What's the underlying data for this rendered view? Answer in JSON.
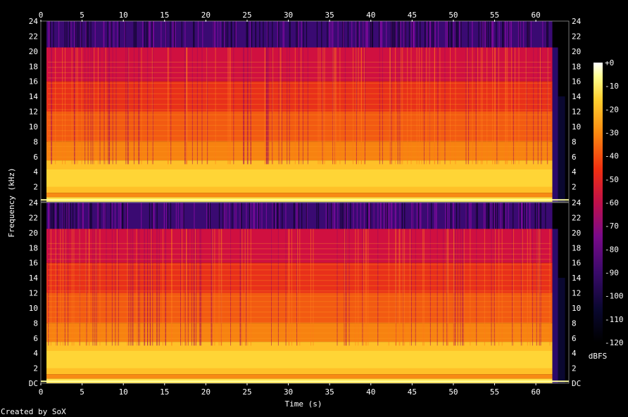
{
  "chart_data": {
    "type": "heatmap",
    "xlabel": "Time (s)",
    "ylabel": "Frequency (kHz)",
    "credit": "Created by SoX",
    "colorbar_label": "dBFS",
    "x_range": [
      0,
      64
    ],
    "x_ticks": [
      "0",
      "5",
      "10",
      "15",
      "20",
      "25",
      "30",
      "35",
      "40",
      "45",
      "50",
      "55",
      "60"
    ],
    "y_ticks": [
      "2",
      "4",
      "6",
      "8",
      "10",
      "12",
      "14",
      "16",
      "18",
      "20",
      "22",
      "24"
    ],
    "y_bottom_label": "DC",
    "colorbar_ticks": [
      "+0",
      "-10",
      "-20",
      "-30",
      "-40",
      "-50",
      "-60",
      "-70",
      "-80",
      "-90",
      "-100",
      "-110",
      "-120"
    ],
    "channels": [
      {
        "label": "channel 1",
        "frequency_range_khz": [
          0,
          24
        ]
      },
      {
        "label": "channel 2",
        "frequency_range_khz": [
          0,
          24
        ]
      }
    ],
    "audio_end_s": 62,
    "cutoff_khz": 20.5,
    "colors": {
      "background": "#000000",
      "text": "#ffffff",
      "palette": [
        "#000000",
        "#0a0830",
        "#2a0a5a",
        "#5a0a8a",
        "#8a0a8a",
        "#b80a5a",
        "#e0102a",
        "#f04010",
        "#f87a0a",
        "#ffb018",
        "#ffe040",
        "#ffff90",
        "#ffffff"
      ]
    }
  }
}
